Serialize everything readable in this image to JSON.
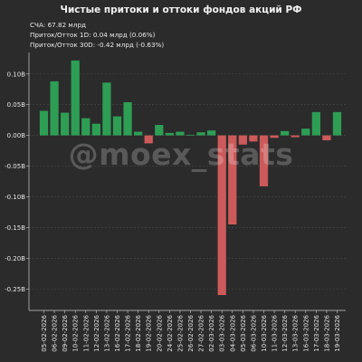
{
  "header": {
    "title": "Чистые притоки и оттоки фондов акций РФ",
    "line1": "СЧА: 67.82 млрд",
    "line2": "Приток/Отток 1D: 0.04 млрд (0.06%)",
    "line3": "Приток/Отток 30D: -0.42 млрд (-0.63%)"
  },
  "watermark": "@moex_stats",
  "colors": {
    "background": "#2b2b2b",
    "positive": "#2e9e55",
    "negative": "#cc5a5a",
    "grid": "#4a4a4a",
    "axis": "#cccccc"
  },
  "chart_data": {
    "type": "bar",
    "categories": [
      "05-02-2026",
      "06-02-2026",
      "09-02-2026",
      "10-02-2026",
      "11-02-2026",
      "12-02-2026",
      "13-02-2026",
      "16-02-2026",
      "17-02-2026",
      "18-02-2026",
      "19-02-2026",
      "20-02-2026",
      "24-02-2026",
      "25-02-2026",
      "26-02-2026",
      "27-02-2026",
      "02-03-2026",
      "03-03-2026",
      "04-03-2026",
      "05-03-2026",
      "06-03-2026",
      "10-03-2026",
      "11-03-2026",
      "12-03-2026",
      "13-03-2026",
      "16-03-2026",
      "17-03-2026",
      "18-03-2026",
      "19-03-2026"
    ],
    "values": [
      0.04,
      0.088,
      0.037,
      0.122,
      0.028,
      0.019,
      0.086,
      0.031,
      0.054,
      0.006,
      -0.013,
      0.017,
      0.004,
      0.006,
      0.001,
      0.005,
      0.008,
      -0.26,
      -0.145,
      -0.015,
      -0.01,
      -0.083,
      -0.004,
      0.007,
      -0.003,
      0.011,
      0.038,
      -0.008,
      0.038
    ],
    "yticks": [
      0.1,
      0.05,
      0.0,
      -0.05,
      -0.1,
      -0.15,
      -0.2,
      -0.25
    ],
    "ytick_labels": [
      "0.10B",
      "0.05B",
      "0.00B",
      "-0.05B",
      "-0.10B",
      "-0.15B",
      "-0.20B",
      "-0.25B"
    ],
    "ylim": [
      -0.285,
      0.135
    ],
    "grid": true
  }
}
